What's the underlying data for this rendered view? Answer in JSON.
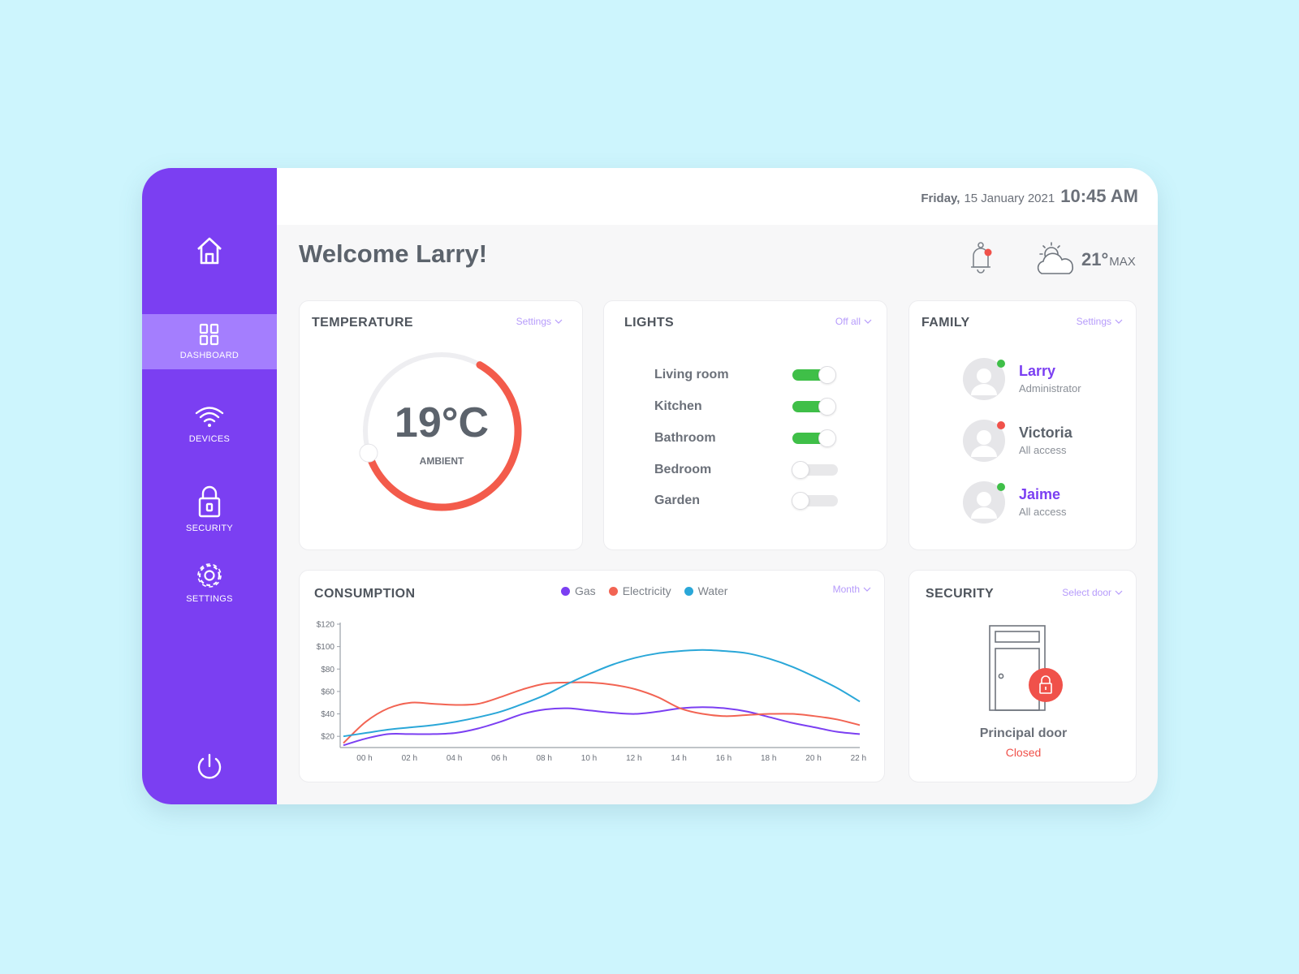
{
  "sidebar": {
    "items": [
      {
        "label": "",
        "icon": "home-icon"
      },
      {
        "label": "DASHBOARD",
        "icon": "dashboard-grid-icon",
        "active": true
      },
      {
        "label": "DEVICES",
        "icon": "wifi-icon"
      },
      {
        "label": "SECURITY",
        "icon": "lock-icon"
      },
      {
        "label": "SETTINGS",
        "icon": "gear-icon"
      }
    ],
    "power_icon": "power-icon"
  },
  "header": {
    "day": "Friday,",
    "date": "15 January 2021",
    "time": "10:45 AM"
  },
  "welcome": "Welcome Larry!",
  "weather": {
    "temperature": "21°",
    "label": "MAX",
    "icon": "partly-cloudy-icon"
  },
  "notifications": {
    "icon": "bell-icon",
    "has_unread": true
  },
  "temperature_card": {
    "title": "TEMPERATURE",
    "action": "Settings",
    "value": "19°C",
    "label": "AMBIENT",
    "dial_fraction": 0.62
  },
  "lights_card": {
    "title": "LIGHTS",
    "action": "Off all",
    "rooms": [
      {
        "name": "Living room",
        "on": true
      },
      {
        "name": "Kitchen",
        "on": true
      },
      {
        "name": "Bathroom",
        "on": true
      },
      {
        "name": "Bedroom",
        "on": false
      },
      {
        "name": "Garden",
        "on": false
      }
    ]
  },
  "family_card": {
    "title": "FAMILY",
    "action": "Settings",
    "members": [
      {
        "name": "Larry",
        "role": "Administrator",
        "online": true
      },
      {
        "name": "Victoria",
        "role": "All access",
        "online": false
      },
      {
        "name": "Jaime",
        "role": "All access",
        "online": true
      }
    ]
  },
  "consumption_card": {
    "title": "CONSUMPTION",
    "action": "Month"
  },
  "security_card": {
    "title": "SECURITY",
    "action": "Select door",
    "door_name": "Principal door",
    "door_status": "Closed"
  },
  "colors": {
    "sidebar": "#7b3ff2",
    "sidebar_active": "#a47efe",
    "gas": "#7b3ff2",
    "electricity": "#f26453",
    "water": "#2aa7d8",
    "toggle_on": "#3fbf48",
    "alert": "#f0514a"
  },
  "chart_data": {
    "type": "line",
    "x": [
      "00 h",
      "01 h",
      "02 h",
      "03 h",
      "04 h",
      "05 h",
      "06 h",
      "07 h",
      "08 h",
      "09 h",
      "10 h",
      "11 h",
      "12 h",
      "13 h",
      "14 h",
      "15 h",
      "16 h",
      "17 h",
      "18 h",
      "19 h",
      "20 h",
      "21 h",
      "22 h",
      "23 h"
    ],
    "x_tick_labels": [
      "00 h",
      "02 h",
      "04 h",
      "06 h",
      "08 h",
      "10 h",
      "12 h",
      "14 h",
      "16 h",
      "18 h",
      "20 h",
      "22 h"
    ],
    "y_tick_labels": [
      "$20",
      "$40",
      "$60",
      "$80",
      "$100",
      "$120"
    ],
    "ylim": [
      10,
      120
    ],
    "series": [
      {
        "name": "Gas",
        "values": [
          12,
          18,
          22,
          22,
          22,
          23,
          27,
          33,
          40,
          44,
          45,
          43,
          41,
          40,
          42,
          45,
          46,
          45,
          42,
          37,
          32,
          28,
          24,
          22
        ]
      },
      {
        "name": "Electricity",
        "values": [
          14,
          33,
          45,
          50,
          49,
          48,
          49,
          55,
          62,
          67,
          68,
          68,
          66,
          62,
          55,
          45,
          40,
          38,
          39,
          40,
          40,
          38,
          35,
          30
        ]
      },
      {
        "name": "Water",
        "values": [
          20,
          23,
          26,
          28,
          30,
          33,
          37,
          42,
          49,
          57,
          67,
          76,
          84,
          90,
          94,
          96,
          97,
          96,
          94,
          89,
          82,
          73,
          63,
          51
        ]
      }
    ],
    "legend_position": "top-center",
    "grid": false
  }
}
